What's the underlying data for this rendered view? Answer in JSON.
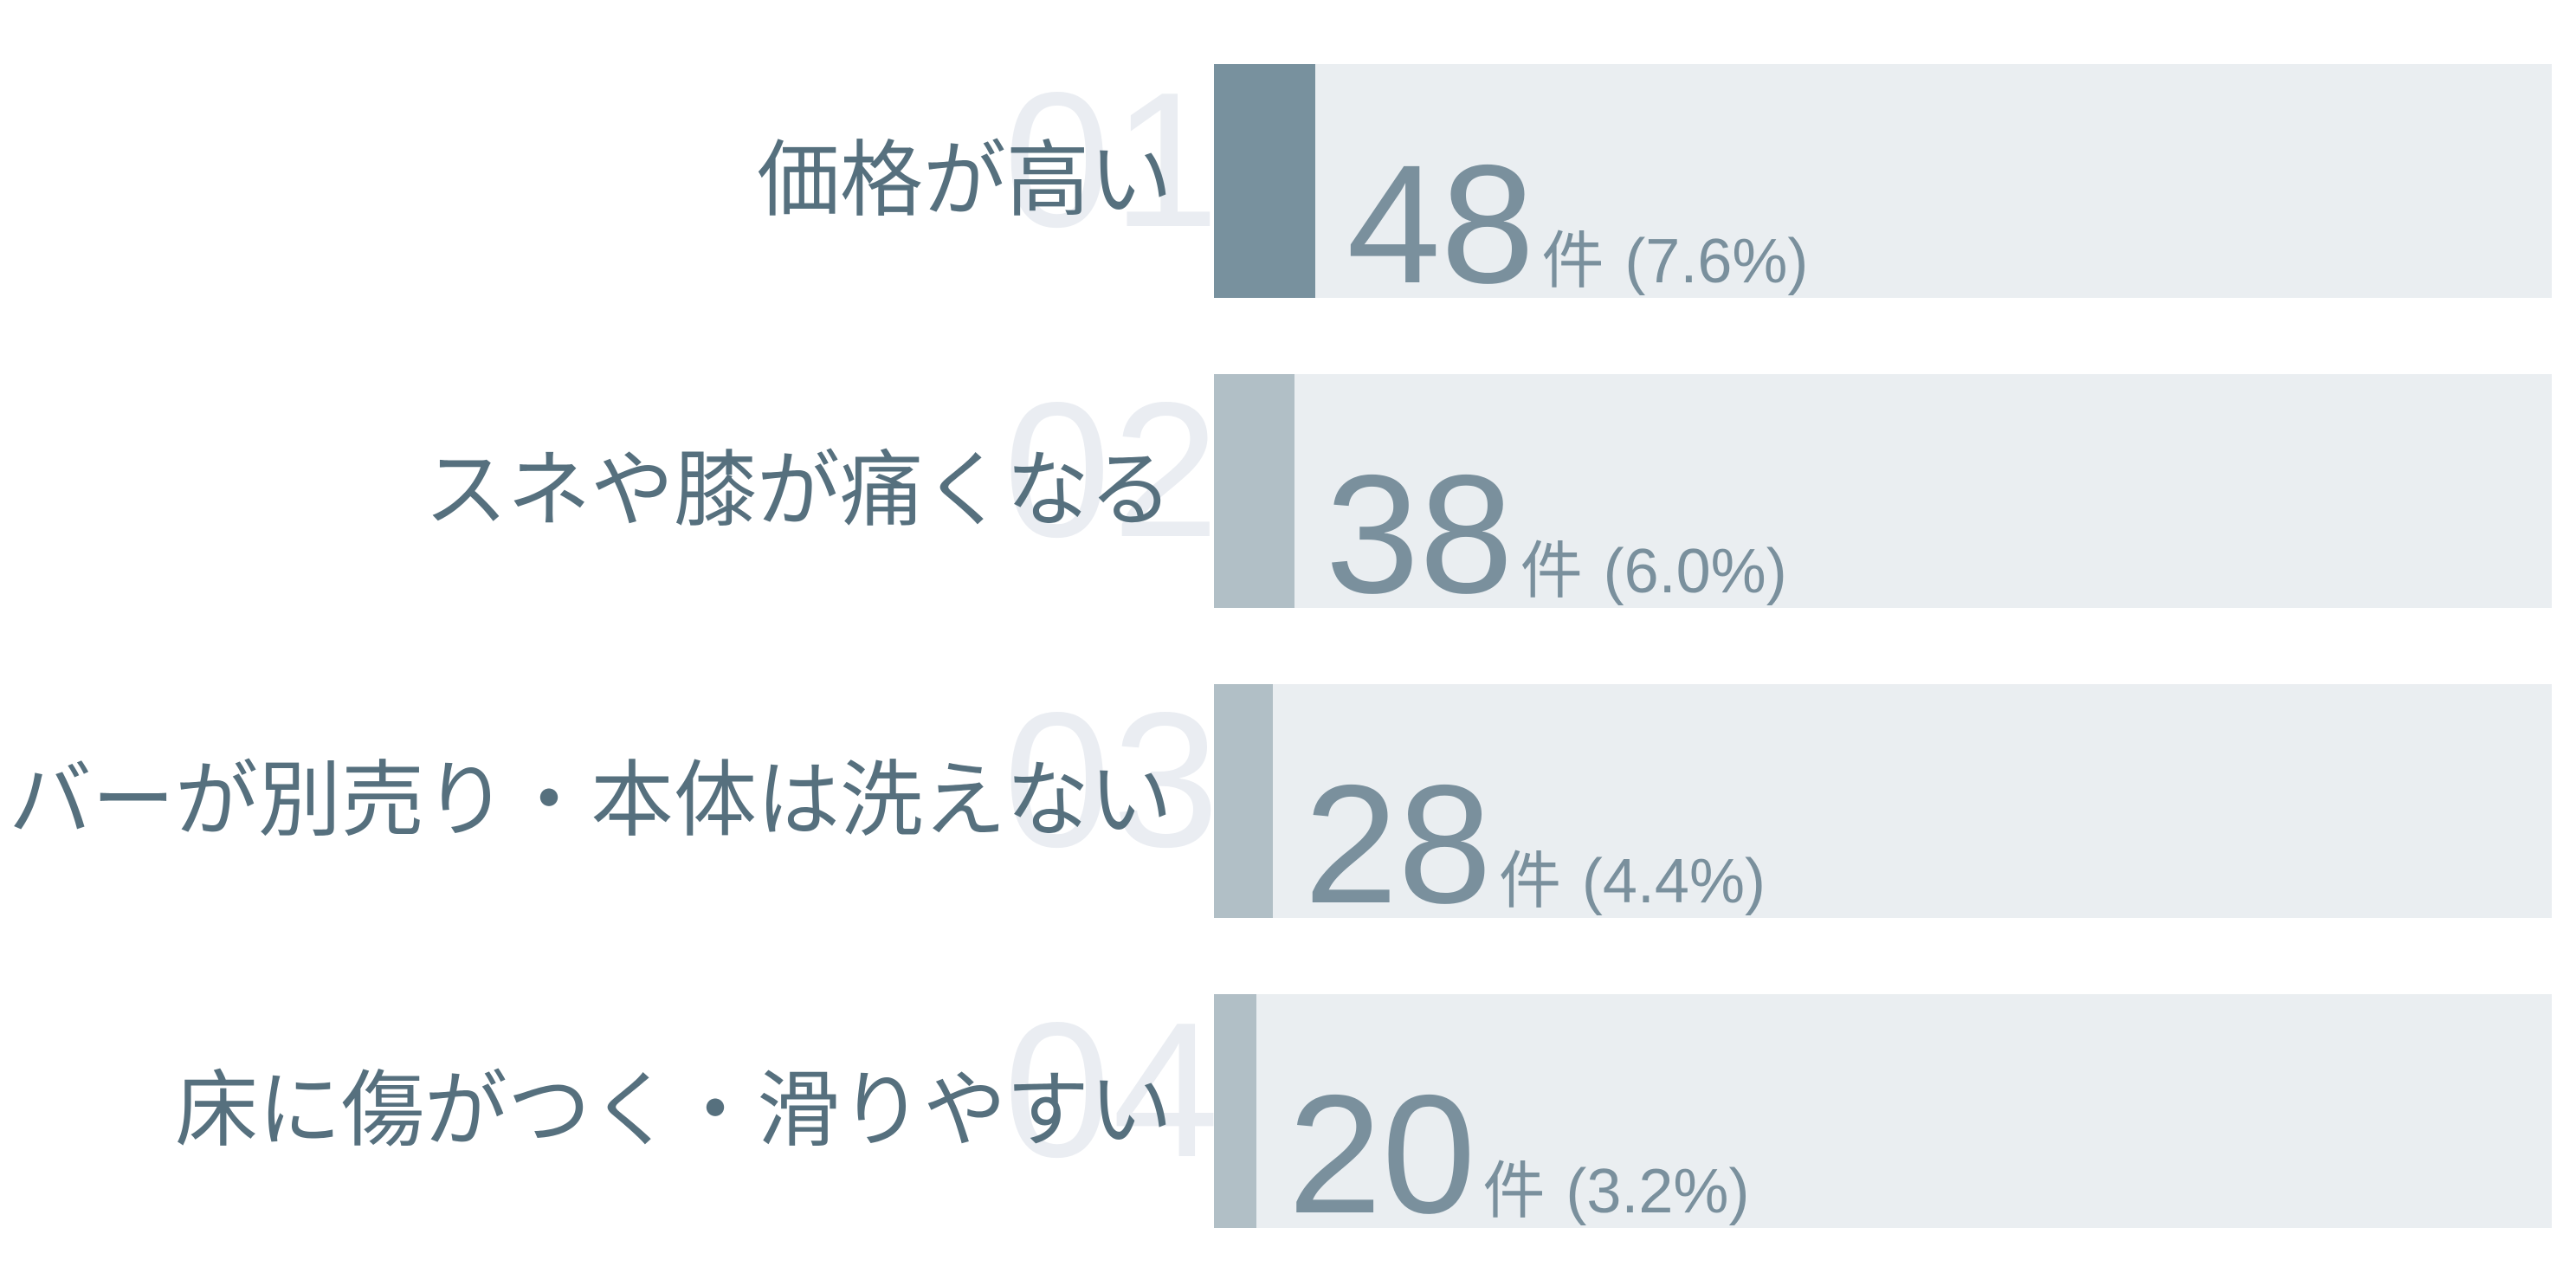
{
  "chart_data": {
    "type": "bar",
    "orientation": "horizontal",
    "title": "",
    "xlabel": "",
    "ylabel": "",
    "xlim_percent": [
      0,
      100
    ],
    "grid": false,
    "legend": "none",
    "unit": "件",
    "categories": [
      "価格が高い",
      "スネや膝が痛くなる",
      "カバーが別売り・本体は洗えない",
      "床に傷がつく・滑りやすい"
    ],
    "values": [
      48,
      38,
      28,
      20
    ],
    "percentages": [
      7.6,
      6.0,
      4.4,
      3.2
    ],
    "rows": [
      {
        "rank": "01",
        "label": "価格が高い",
        "value": "48",
        "unit": "件",
        "pct_text": "(7.6%)",
        "pct": 7.6
      },
      {
        "rank": "02",
        "label": "スネや膝が痛くなる",
        "value": "38",
        "unit": "件",
        "pct_text": "(6.0%)",
        "pct": 6.0
      },
      {
        "rank": "03",
        "label": "カバーが別売り・本体は洗えない",
        "value": "28",
        "unit": "件",
        "pct_text": "(4.4%)",
        "pct": 4.4
      },
      {
        "rank": "04",
        "label": "床に傷がつく・滑りやすい",
        "value": "20",
        "unit": "件",
        "pct_text": "(3.2%)",
        "pct": 3.2
      }
    ],
    "colors": {
      "background": "#FFFFFF",
      "track": "#EAEEF1",
      "fill_primary": "#78919E",
      "fill_secondary": "#B1BFC6",
      "label_text": "#56707E",
      "value_text": "#7A909D",
      "rank_number": "#EAEDF2"
    }
  }
}
